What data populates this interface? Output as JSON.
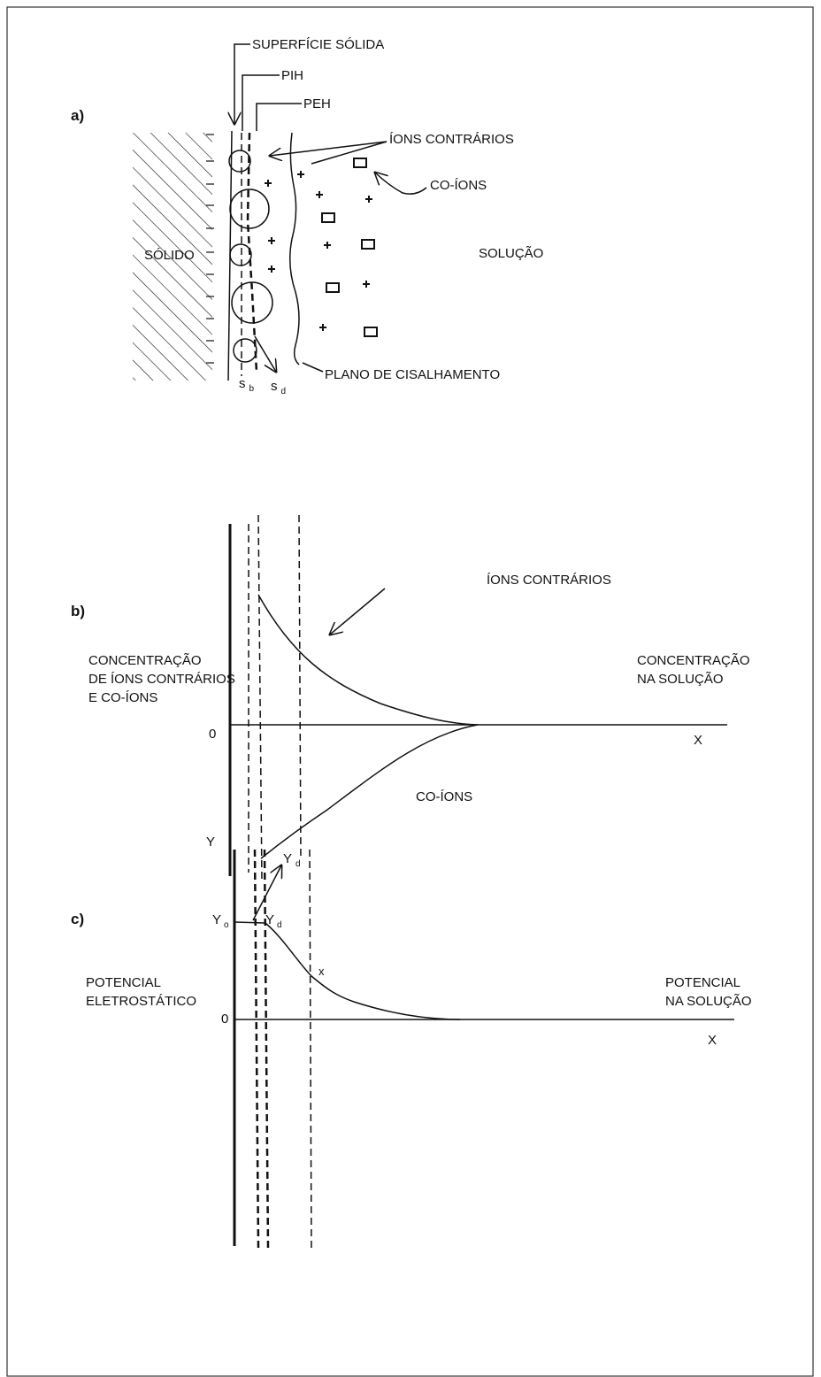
{
  "panel_a": {
    "label": "a)",
    "solid_surface": "SUPERFÍCIE SÓLIDA",
    "pih": "PIH",
    "peh": "PEH",
    "counter_ions": "ÍONS CONTRÁRIOS",
    "co_ions": "CO-ÍONS",
    "solid": "SÓLIDO",
    "solution": "SOLUÇÃO",
    "shear_plane": "PLANO DE CISALHAMENTO",
    "s_b": {
      "base": "s",
      "sub": "b"
    },
    "s_d": {
      "base": "s",
      "sub": "d"
    }
  },
  "panel_b": {
    "label": "b)",
    "counter_ions": "ÍONS CONTRÁRIOS",
    "y_label": [
      "CONCENTRAÇÃO",
      "DE ÍONS CONTRÁRIOS",
      "E CO-ÍONS"
    ],
    "solution_label": [
      "CONCENTRAÇÃO",
      "NA SOLUÇÃO"
    ],
    "origin": "0",
    "x_axis": "X",
    "co_ions": "CO-ÍONS"
  },
  "panel_c": {
    "label": "c)",
    "y_axis": "Y",
    "psi_d_top": {
      "base": "Y",
      "sub": "d"
    },
    "psi_o": {
      "base": "Y",
      "sub": "o"
    },
    "psi_d": {
      "base": "Y",
      "sub": "d"
    },
    "x_mark": "x",
    "y_label": [
      "POTENCIAL",
      "ELETROSTÁTICO"
    ],
    "solution_label": [
      "POTENCIAL",
      "NA SOLUÇÃO"
    ],
    "origin": "0",
    "x_axis": "X"
  }
}
